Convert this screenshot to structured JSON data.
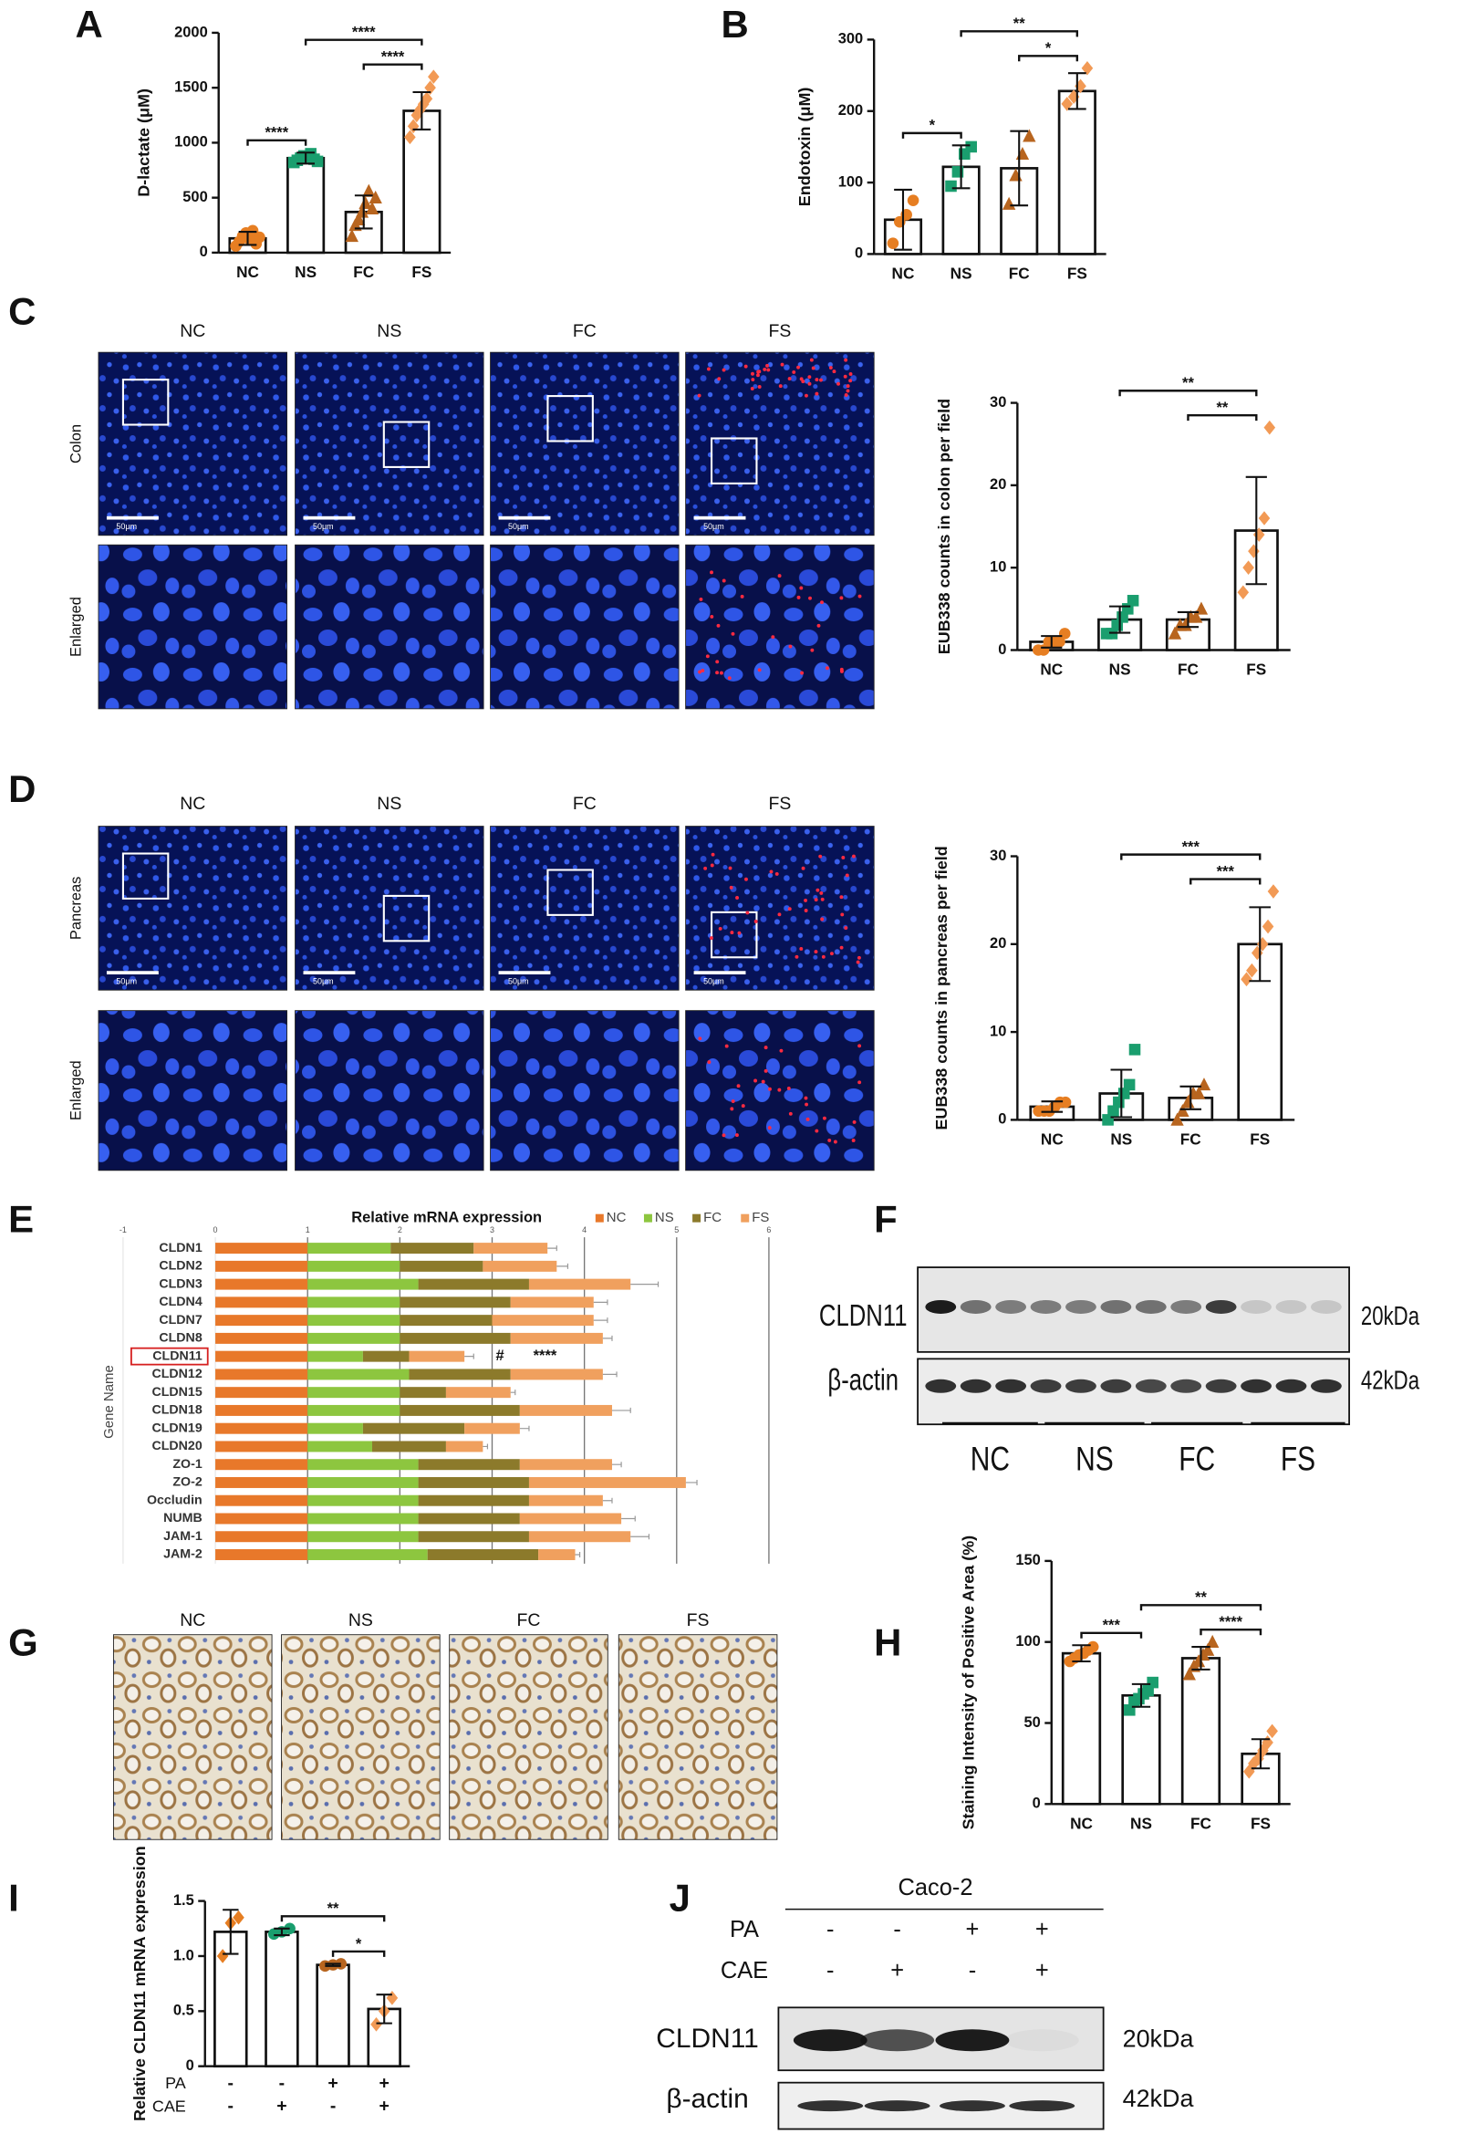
{
  "chart_data": [
    {
      "type": "bar",
      "panel": "A",
      "ylabel": "D-lactate (μM)",
      "categories": [
        "NC",
        "NS",
        "FC",
        "FS"
      ],
      "values": [
        130,
        860,
        370,
        1290
      ],
      "errors": [
        60,
        50,
        150,
        170
      ],
      "points": [
        [
          60,
          100,
          150,
          180,
          120,
          200,
          80,
          140
        ],
        [
          820,
          840,
          860,
          880,
          870,
          900,
          850,
          830
        ],
        [
          150,
          250,
          300,
          370,
          450,
          560,
          400,
          500
        ],
        [
          1050,
          1150,
          1250,
          1300,
          1350,
          1400,
          1500,
          1600
        ]
      ],
      "colors": [
        "#E67E22",
        "#1A9E6E",
        "#B8651F",
        "#F29A55"
      ],
      "markers": [
        "circle",
        "square",
        "triangle",
        "diamond"
      ],
      "ylim": [
        0,
        2000
      ],
      "yticks": [
        0,
        500,
        1000,
        1500,
        2000
      ],
      "significance": [
        {
          "between": [
            0,
            1
          ],
          "label": "****"
        },
        {
          "between": [
            2,
            3
          ],
          "label": "****"
        },
        {
          "between": [
            1,
            3
          ],
          "label": "****"
        }
      ]
    },
    {
      "type": "bar",
      "panel": "B",
      "ylabel": "Endotoxin (μM)",
      "categories": [
        "NC",
        "NS",
        "FC",
        "FS"
      ],
      "values": [
        48,
        122,
        120,
        228
      ],
      "errors": [
        42,
        30,
        52,
        25
      ],
      "points": [
        [
          15,
          45,
          55,
          75
        ],
        [
          95,
          115,
          140,
          150
        ],
        [
          70,
          110,
          140,
          165
        ],
        [
          210,
          220,
          235,
          260
        ]
      ],
      "colors": [
        "#E67E22",
        "#1A9E6E",
        "#B8651F",
        "#F29A55"
      ],
      "markers": [
        "circle",
        "square",
        "triangle",
        "diamond"
      ],
      "ylim": [
        0,
        300
      ],
      "yticks": [
        0,
        100,
        200,
        300
      ],
      "significance": [
        {
          "between": [
            0,
            1
          ],
          "label": "*"
        },
        {
          "between": [
            2,
            3
          ],
          "label": "*"
        },
        {
          "between": [
            1,
            3
          ],
          "label": "**"
        }
      ]
    },
    {
      "type": "bar",
      "ylabel": "EUB338 counts in colon per field",
      "categories": [
        "NC",
        "NS",
        "FC",
        "FS"
      ],
      "values": [
        1,
        3.7,
        3.7,
        14.5
      ],
      "errors": [
        0.7,
        1.6,
        0.9,
        6.5
      ],
      "points": [
        [
          0,
          0,
          1,
          1,
          1,
          2
        ],
        [
          2,
          2,
          3,
          4,
          5,
          6
        ],
        [
          2,
          3,
          3,
          4,
          4,
          5
        ],
        [
          7,
          10,
          12,
          14,
          16,
          27
        ]
      ],
      "colors": [
        "#E67E22",
        "#1A9E6E",
        "#B8651F",
        "#F29A55"
      ],
      "markers": [
        "circle",
        "square",
        "triangle",
        "diamond"
      ],
      "ylim": [
        0,
        30
      ],
      "yticks": [
        0,
        10,
        20,
        30
      ],
      "significance": [
        {
          "between": [
            2,
            3
          ],
          "label": "**"
        },
        {
          "between": [
            1,
            3
          ],
          "label": "**"
        }
      ]
    },
    {
      "type": "bar",
      "ylabel": "EUB338 counts in pancreas per field",
      "categories": [
        "NC",
        "NS",
        "FC",
        "FS"
      ],
      "values": [
        1.5,
        3,
        2.5,
        20
      ],
      "errors": [
        0.6,
        2.7,
        1.3,
        4.2
      ],
      "points": [
        [
          1,
          1,
          1,
          1.5,
          2,
          2
        ],
        [
          0,
          1,
          2,
          3,
          4,
          8
        ],
        [
          0,
          1,
          2,
          3,
          3,
          4
        ],
        [
          16,
          17,
          19,
          20,
          22,
          26
        ]
      ],
      "colors": [
        "#E67E22",
        "#1A9E6E",
        "#B8651F",
        "#F29A55"
      ],
      "markers": [
        "circle",
        "square",
        "triangle",
        "diamond"
      ],
      "ylim": [
        0,
        30
      ],
      "yticks": [
        0,
        10,
        20,
        30
      ],
      "significance": [
        {
          "between": [
            2,
            3
          ],
          "label": "***"
        },
        {
          "between": [
            1,
            3
          ],
          "label": "***"
        }
      ]
    },
    {
      "type": "bar",
      "panel": "E",
      "horizontal": true,
      "stacked": true,
      "title": "Relative mRNA expression",
      "ylabel": "Gene Name",
      "categories": [
        "CLDN1",
        "CLDN2",
        "CLDN3",
        "CLDN4",
        "CLDN7",
        "CLDN8",
        "CLDN11",
        "CLDN12",
        "CLDN15",
        "CLDN18",
        "CLDN19",
        "CLDN20",
        "ZO-1",
        "ZO-2",
        "Occludin",
        "NUMB",
        "JAM-1",
        "JAM-2"
      ],
      "series": [
        {
          "name": "NC",
          "color": "#E8782A",
          "values": [
            1,
            1,
            1,
            1,
            1,
            1,
            1,
            1,
            1,
            1,
            1,
            1,
            1,
            1,
            1,
            1,
            1,
            1
          ]
        },
        {
          "name": "NS",
          "color": "#8DC63F",
          "values": [
            0.9,
            1,
            1.2,
            1,
            1,
            1,
            0.6,
            1.1,
            1,
            1,
            0.6,
            0.7,
            1.2,
            1.2,
            1.2,
            1.2,
            1.2,
            1.3
          ]
        },
        {
          "name": "FC",
          "color": "#8C7A2B",
          "values": [
            0.9,
            0.9,
            1.2,
            1.2,
            1,
            1.2,
            0.5,
            1.1,
            0.5,
            1.3,
            1.1,
            0.8,
            1.1,
            1.2,
            1.2,
            1.1,
            1.2,
            1.2
          ]
        },
        {
          "name": "FS",
          "color": "#F0A05E",
          "values": [
            0.8,
            0.8,
            1.1,
            0.9,
            1.1,
            1.0,
            0.6,
            1.0,
            0.7,
            1.0,
            0.6,
            0.4,
            1.0,
            1.7,
            0.8,
            1.1,
            1.1,
            0.4
          ]
        }
      ],
      "errors": [
        0.1,
        0.12,
        0.3,
        0.15,
        0.15,
        0.1,
        0.1,
        0.15,
        0.05,
        0.2,
        0.1,
        0.05,
        0.1,
        0.12,
        0.1,
        0.15,
        0.2,
        0.05
      ],
      "xlim": [
        -1,
        6
      ],
      "xticks": [
        -1,
        0,
        1,
        2,
        3,
        4,
        5,
        6
      ],
      "grid": true,
      "highlight": "CLDN11",
      "annotations": [
        "#",
        "****"
      ]
    },
    {
      "type": "bar",
      "panel": "H",
      "ylabel": "Staining Intensity of Positive Area (%)",
      "categories": [
        "NC",
        "NS",
        "FC",
        "FS"
      ],
      "values": [
        93,
        67,
        90,
        31
      ],
      "errors": [
        5,
        7,
        7,
        9
      ],
      "points": [
        [
          88,
          90,
          92,
          93,
          95,
          97
        ],
        [
          58,
          63,
          65,
          68,
          70,
          75
        ],
        [
          80,
          85,
          88,
          92,
          95,
          100
        ],
        [
          20,
          25,
          28,
          33,
          38,
          45
        ]
      ],
      "colors": [
        "#E67E22",
        "#1A9E6E",
        "#B8651F",
        "#F29A55"
      ],
      "markers": [
        "circle",
        "square",
        "triangle",
        "diamond"
      ],
      "ylim": [
        0,
        150
      ],
      "yticks": [
        0,
        50,
        100,
        150
      ],
      "significance": [
        {
          "between": [
            0,
            1
          ],
          "label": "***"
        },
        {
          "between": [
            2,
            3
          ],
          "label": "****"
        },
        {
          "between": [
            1,
            3
          ],
          "label": "**"
        }
      ]
    },
    {
      "type": "bar",
      "panel": "I",
      "ylabel": "Relative CLDN11 mRNA expression",
      "values": [
        1.22,
        1.22,
        0.92,
        0.52
      ],
      "errors": [
        0.2,
        0.03,
        0.01,
        0.13
      ],
      "points": [
        [
          1.0,
          1.3,
          1.35
        ],
        [
          1.2,
          1.22,
          1.25
        ],
        [
          0.91,
          0.92,
          0.93
        ],
        [
          0.38,
          0.5,
          0.62
        ]
      ],
      "colors": [
        "#E67E22",
        "#1A9E6E",
        "#B8651F",
        "#F29A55"
      ],
      "markers": [
        "diamond",
        "circle",
        "circle",
        "diamond"
      ],
      "ylim": [
        0,
        1.5
      ],
      "yticks": [
        0,
        0.5,
        {
          "value": 1,
          "label": "1.0"
        },
        1.5
      ],
      "rows": [
        {
          "name": "PA",
          "signs": [
            "-",
            "-",
            "+",
            "+"
          ]
        },
        {
          "name": "CAE",
          "signs": [
            "-",
            "+",
            "-",
            "+"
          ]
        }
      ],
      "significance": [
        {
          "between": [
            2,
            3
          ],
          "label": "*"
        },
        {
          "between": [
            1,
            3
          ],
          "label": "**"
        }
      ]
    }
  ],
  "images": {
    "C": {
      "panel": "C",
      "columns": [
        "NC",
        "NS",
        "FC",
        "FS"
      ],
      "rows": [
        "Colon",
        "Enlarged"
      ],
      "scale_bar": "50μm"
    },
    "D": {
      "panel": "D",
      "columns": [
        "NC",
        "NS",
        "FC",
        "FS"
      ],
      "rows": [
        "Pancreas",
        "Enlarged"
      ],
      "scale_bar": "50μm"
    },
    "G": {
      "panel": "G",
      "columns": [
        "NC",
        "NS",
        "FC",
        "FS"
      ]
    }
  },
  "blots": {
    "F": {
      "panel": "F",
      "proteins": [
        {
          "name": "CLDN11",
          "size": "20kDa"
        },
        {
          "name": "β-actin",
          "size": "42kDa"
        }
      ],
      "groups": [
        "NC",
        "NS",
        "FC",
        "FS"
      ]
    },
    "J": {
      "panel": "J",
      "cell_line": "Caco-2",
      "treatments": [
        {
          "name": "PA",
          "signs": [
            "-",
            "-",
            "+",
            "+"
          ]
        },
        {
          "name": "CAE",
          "signs": [
            "-",
            "+",
            "-",
            "+"
          ]
        }
      ],
      "proteins": [
        {
          "name": "CLDN11",
          "size": "20kDa"
        },
        {
          "name": "β-actin",
          "size": "42kDa"
        }
      ]
    }
  }
}
